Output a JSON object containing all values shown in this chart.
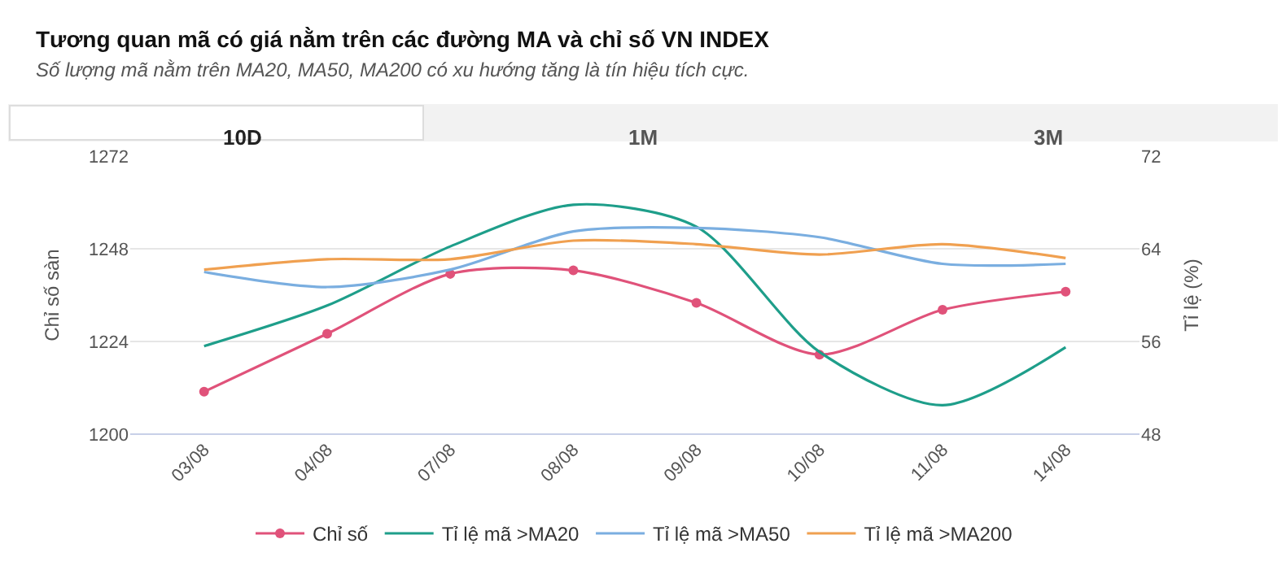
{
  "chart_data": {
    "type": "line",
    "title": "Tương quan mã có giá nằm trên các đường MA và chỉ số VN INDEX",
    "subtitle": "Số lượng mã nằm trên MA20, MA50, MA200 có xu hướng tăng là tín hiệu tích cực.",
    "annotations": [
      "10D",
      "1M",
      "3M"
    ],
    "xlabel": null,
    "ylabel": "Chỉ số sàn",
    "y2label": "Tỉ lệ (%)",
    "categories": [
      "03/08",
      "04/08",
      "07/08",
      "08/08",
      "09/08",
      "10/08",
      "11/08",
      "14/08"
    ],
    "series": [
      {
        "name": "Chỉ số",
        "color": "#e0527a",
        "marker": "circle",
        "values": [
          1211,
          1226,
          1241.5,
          1242.4,
          1234,
          1220.6,
          1232.2,
          1236.9
        ]
      },
      {
        "name": "Tỉ lệ mã >MA20",
        "color": "#1e9e8a",
        "axis": "y2",
        "values": [
          55.6,
          59.1,
          64.2,
          67.8,
          65.9,
          55.1,
          50.5,
          55.5
        ]
      },
      {
        "name": "Tỉ lệ mã >MA50",
        "color": "#7aaee0",
        "axis": "y2",
        "values": [
          62.0,
          60.7,
          62.2,
          65.5,
          65.8,
          65.0,
          62.7,
          62.7
        ]
      },
      {
        "name": "Tỉ lệ mã >MA200",
        "color": "#f0a050",
        "axis": "y2",
        "values": [
          62.2,
          63.1,
          63.1,
          64.7,
          64.4,
          63.5,
          64.4,
          63.2
        ]
      }
    ],
    "ylim": [
      1200,
      1272
    ],
    "yticks": [
      1200,
      1224,
      1248,
      1272
    ],
    "y2lim": [
      48,
      72
    ],
    "y2ticks": [
      48,
      56,
      64,
      72
    ],
    "grid": "y",
    "legend": "bottom",
    "line_style": "solid"
  }
}
